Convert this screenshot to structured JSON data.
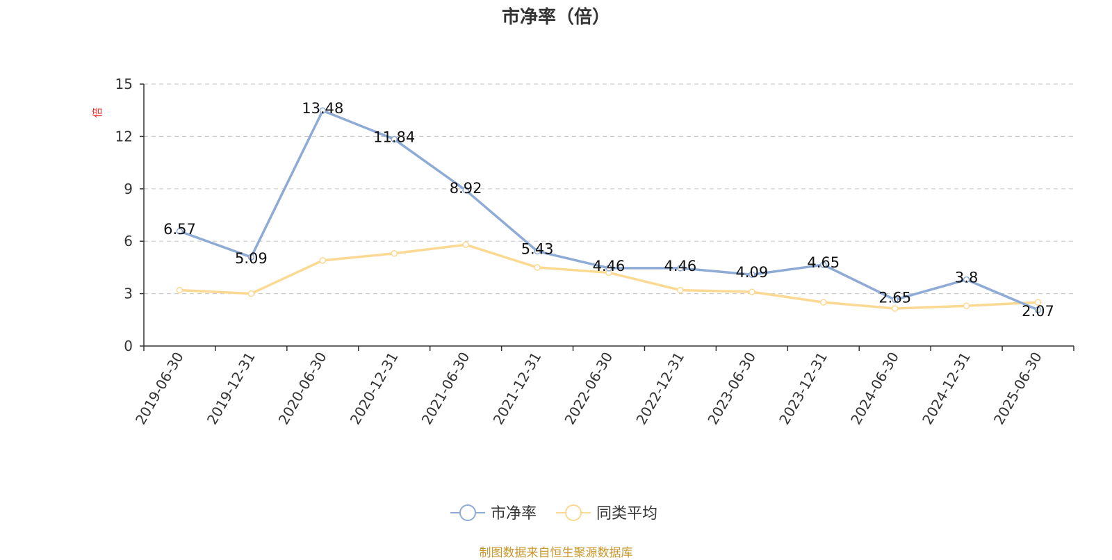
{
  "title": "市净率（倍）",
  "source": "制图数据来自恒生聚源数据库",
  "colors": {
    "series1": "#8eabd6",
    "series2": "#fcd992",
    "grid": "#cccccc",
    "axis": "#333333",
    "unit": "#e8322f",
    "source": "#c9962a"
  },
  "chart_data": {
    "type": "line",
    "title": "市净率（倍）",
    "ylabel": "倍",
    "ylim": [
      0,
      15
    ],
    "yticks": [
      0,
      3,
      6,
      9,
      12,
      15
    ],
    "grid": true,
    "legend": "bottom-center",
    "categories": [
      "2019-06-30",
      "2019-12-31",
      "2020-06-30",
      "2020-12-31",
      "2021-06-30",
      "2021-12-31",
      "2022-06-30",
      "2022-12-31",
      "2023-06-30",
      "2023-12-31",
      "2024-06-30",
      "2024-12-31",
      "2025-06-30"
    ],
    "series": [
      {
        "name": "市净率",
        "values": [
          6.57,
          5.09,
          13.48,
          11.84,
          8.92,
          5.43,
          4.46,
          4.46,
          4.09,
          4.65,
          2.65,
          3.8,
          2.07
        ],
        "labels": [
          "6.57",
          "5.09",
          "13.48",
          "11.84",
          "8.92",
          "5.43",
          "4.46",
          "4.46",
          "4.09",
          "4.65",
          "2.65",
          "3.8",
          "2.07"
        ]
      },
      {
        "name": "同类平均",
        "values": [
          3.2,
          3.0,
          4.9,
          5.3,
          5.8,
          4.5,
          4.2,
          3.2,
          3.1,
          2.5,
          2.15,
          2.3,
          2.5
        ]
      }
    ]
  }
}
